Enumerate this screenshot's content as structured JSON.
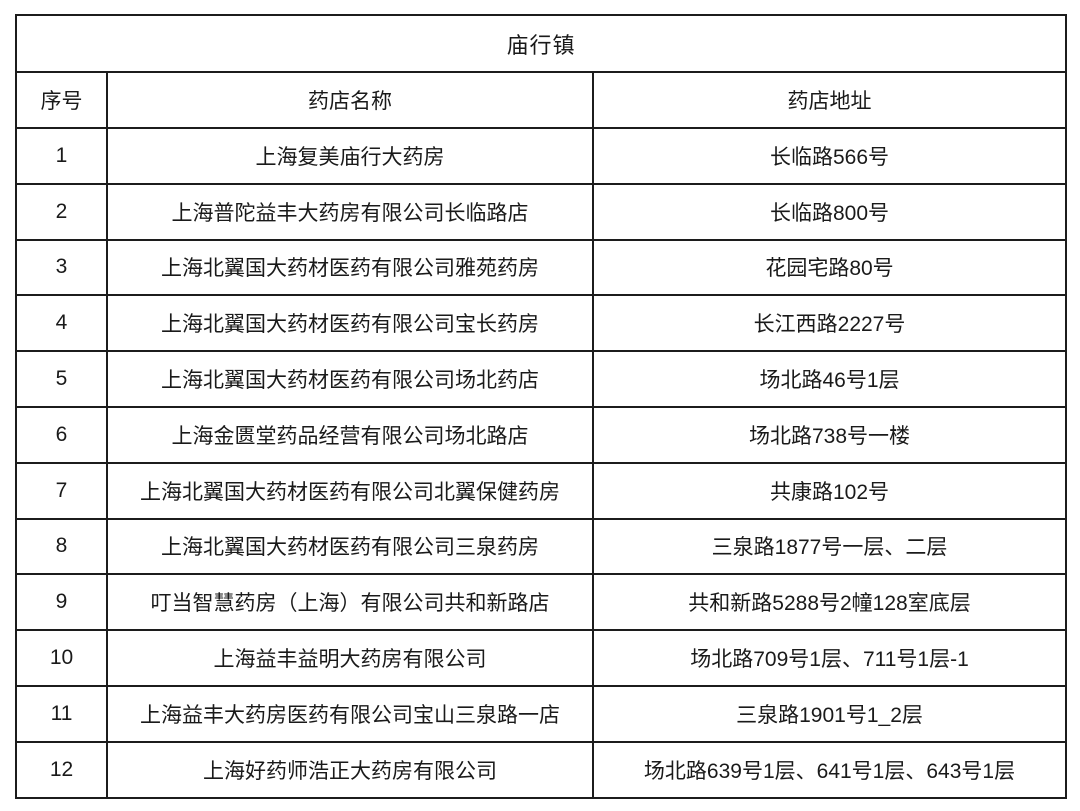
{
  "table": {
    "title": "庙行镇",
    "columns": [
      "序号",
      "药店名称",
      "药店地址"
    ],
    "rows": [
      {
        "no": "1",
        "name": "上海复美庙行大药房",
        "address": "长临路566号"
      },
      {
        "no": "2",
        "name": "上海普陀益丰大药房有限公司长临路店",
        "address": "长临路800号"
      },
      {
        "no": "3",
        "name": "上海北翼国大药材医药有限公司雅苑药房",
        "address": "花园宅路80号"
      },
      {
        "no": "4",
        "name": "上海北翼国大药材医药有限公司宝长药房",
        "address": "长江西路2227号"
      },
      {
        "no": "5",
        "name": "上海北翼国大药材医药有限公司场北药店",
        "address": "场北路46号1层"
      },
      {
        "no": "6",
        "name": "上海金匮堂药品经营有限公司场北路店",
        "address": "场北路738号一楼"
      },
      {
        "no": "7",
        "name": "上海北翼国大药材医药有限公司北翼保健药房",
        "address": "共康路102号"
      },
      {
        "no": "8",
        "name": "上海北翼国大药材医药有限公司三泉药房",
        "address": "三泉路1877号一层、二层"
      },
      {
        "no": "9",
        "name": "叮当智慧药房（上海）有限公司共和新路店",
        "address": "共和新路5288号2幢128室底层"
      },
      {
        "no": "10",
        "name": "上海益丰益明大药房有限公司",
        "address": "场北路709号1层、711号1层-1"
      },
      {
        "no": "11",
        "name": "上海益丰大药房医药有限公司宝山三泉路一店",
        "address": "三泉路1901号1_2层"
      },
      {
        "no": "12",
        "name": "上海好药师浩正大药房有限公司",
        "address": "场北路639号1层、641号1层、643号1层"
      }
    ],
    "colors": {
      "border": "#1c1c1c",
      "text": "#1a1a1a",
      "background": "#ffffff"
    }
  }
}
